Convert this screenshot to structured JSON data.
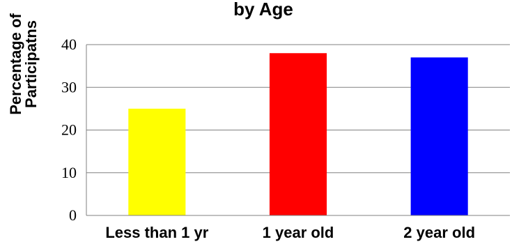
{
  "chart_data": {
    "type": "bar",
    "title": "by Age",
    "ylabel": [
      "Percentage of",
      "Participatns"
    ],
    "xlabel": "",
    "categories": [
      "Less than 1 yr",
      "1 year old",
      "2 year old"
    ],
    "values": [
      25,
      38,
      37
    ],
    "colors": [
      "#ffff00",
      "#ff0000",
      "#0000ff"
    ],
    "ylim": [
      0,
      40
    ],
    "yticks": [
      0,
      10,
      20,
      30,
      40
    ],
    "grid": true
  }
}
